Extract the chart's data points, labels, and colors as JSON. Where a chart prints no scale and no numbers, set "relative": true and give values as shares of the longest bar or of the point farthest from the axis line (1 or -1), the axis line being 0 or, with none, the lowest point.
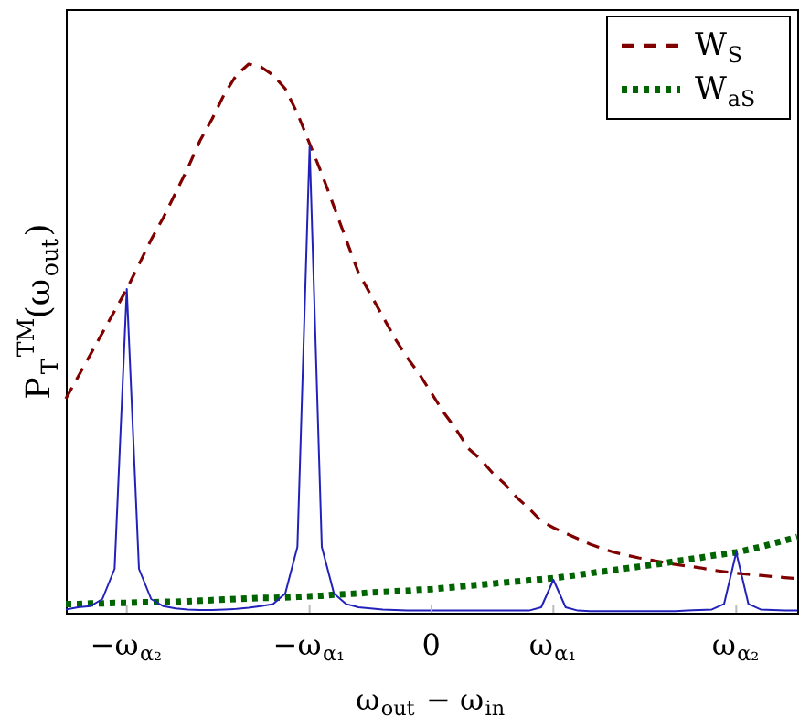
{
  "chart_data": {
    "type": "line",
    "relative": true,
    "xlabel": "ω$_{out}$ − ω$_{in}$",
    "ylabel": "P$_{T}$$^{TM}$(ω$_{out}$)",
    "categories": [
      null,
      null,
      null,
      null,
      null,
      "−ω$_{α₂}$",
      null,
      null,
      null,
      null,
      null,
      null,
      null,
      null,
      null,
      null,
      null,
      null,
      null,
      null,
      "−ω$_{α₁}$",
      null,
      null,
      null,
      null,
      null,
      null,
      null,
      null,
      null,
      "0",
      null,
      null,
      null,
      null,
      null,
      null,
      null,
      null,
      null,
      "ω$_{α₁}$",
      null,
      null,
      null,
      null,
      null,
      null,
      null,
      null,
      null,
      null,
      null,
      null,
      null,
      null,
      "ω$_{α₂}$",
      null,
      null,
      null,
      null,
      null
    ],
    "legend": "top right",
    "series": [
      {
        "name": "W$_{S}$",
        "color": "#800000",
        "line_style": "dashed",
        "values": [
          0.39,
          0.43,
          0.47,
          0.51,
          0.55,
          0.59,
          0.635,
          0.68,
          0.72,
          0.765,
          0.81,
          0.86,
          0.9,
          0.945,
          0.98,
          1.0,
          0.995,
          0.98,
          0.955,
          0.91,
          0.855,
          0.8,
          0.74,
          0.68,
          0.62,
          0.58,
          0.54,
          0.5,
          0.465,
          0.435,
          0.4,
          0.365,
          0.335,
          0.3,
          0.28,
          0.255,
          0.235,
          0.21,
          0.19,
          0.167,
          0.155,
          0.145,
          0.135,
          0.125,
          0.117,
          0.11,
          0.105,
          0.1,
          0.096,
          0.092,
          0.088,
          0.085,
          0.082,
          0.078,
          0.075,
          0.072,
          0.07,
          0.068,
          0.066,
          0.064,
          0.062
        ]
      },
      {
        "name": "W$_{aS}$",
        "color": "#006400",
        "line_style": "dotted",
        "values": [
          0.016,
          0.016,
          0.017,
          0.017,
          0.018,
          0.018,
          0.019,
          0.019,
          0.02,
          0.02,
          0.021,
          0.022,
          0.023,
          0.024,
          0.025,
          0.026,
          0.027,
          0.027,
          0.028,
          0.029,
          0.03,
          0.031,
          0.033,
          0.034,
          0.035,
          0.037,
          0.038,
          0.039,
          0.04,
          0.042,
          0.043,
          0.045,
          0.047,
          0.049,
          0.051,
          0.053,
          0.055,
          0.057,
          0.059,
          0.061,
          0.063,
          0.066,
          0.069,
          0.072,
          0.075,
          0.078,
          0.081,
          0.084,
          0.087,
          0.09,
          0.094,
          0.097,
          0.1,
          0.104,
          0.107,
          0.11,
          0.115,
          0.12,
          0.126,
          0.132,
          0.138
        ]
      },
      {
        "color": "#2222bb",
        "line_style": "solid",
        "values": [
          0.006,
          0.01,
          0.012,
          0.025,
          0.08,
          0.59,
          0.08,
          0.025,
          0.012,
          0.008,
          0.006,
          0.005,
          0.005,
          0.006,
          0.007,
          0.009,
          0.012,
          0.016,
          0.035,
          0.12,
          0.85,
          0.12,
          0.035,
          0.016,
          0.01,
          0.008,
          0.006,
          0.005,
          0.004,
          0.004,
          0.004,
          0.004,
          0.004,
          0.004,
          0.004,
          0.004,
          0.004,
          0.004,
          0.004,
          0.01,
          0.06,
          0.01,
          0.004,
          0.003,
          0.003,
          0.003,
          0.003,
          0.003,
          0.003,
          0.003,
          0.003,
          0.004,
          0.005,
          0.006,
          0.016,
          0.11,
          0.016,
          0.006,
          0.005,
          0.004,
          0.004
        ]
      }
    ]
  }
}
